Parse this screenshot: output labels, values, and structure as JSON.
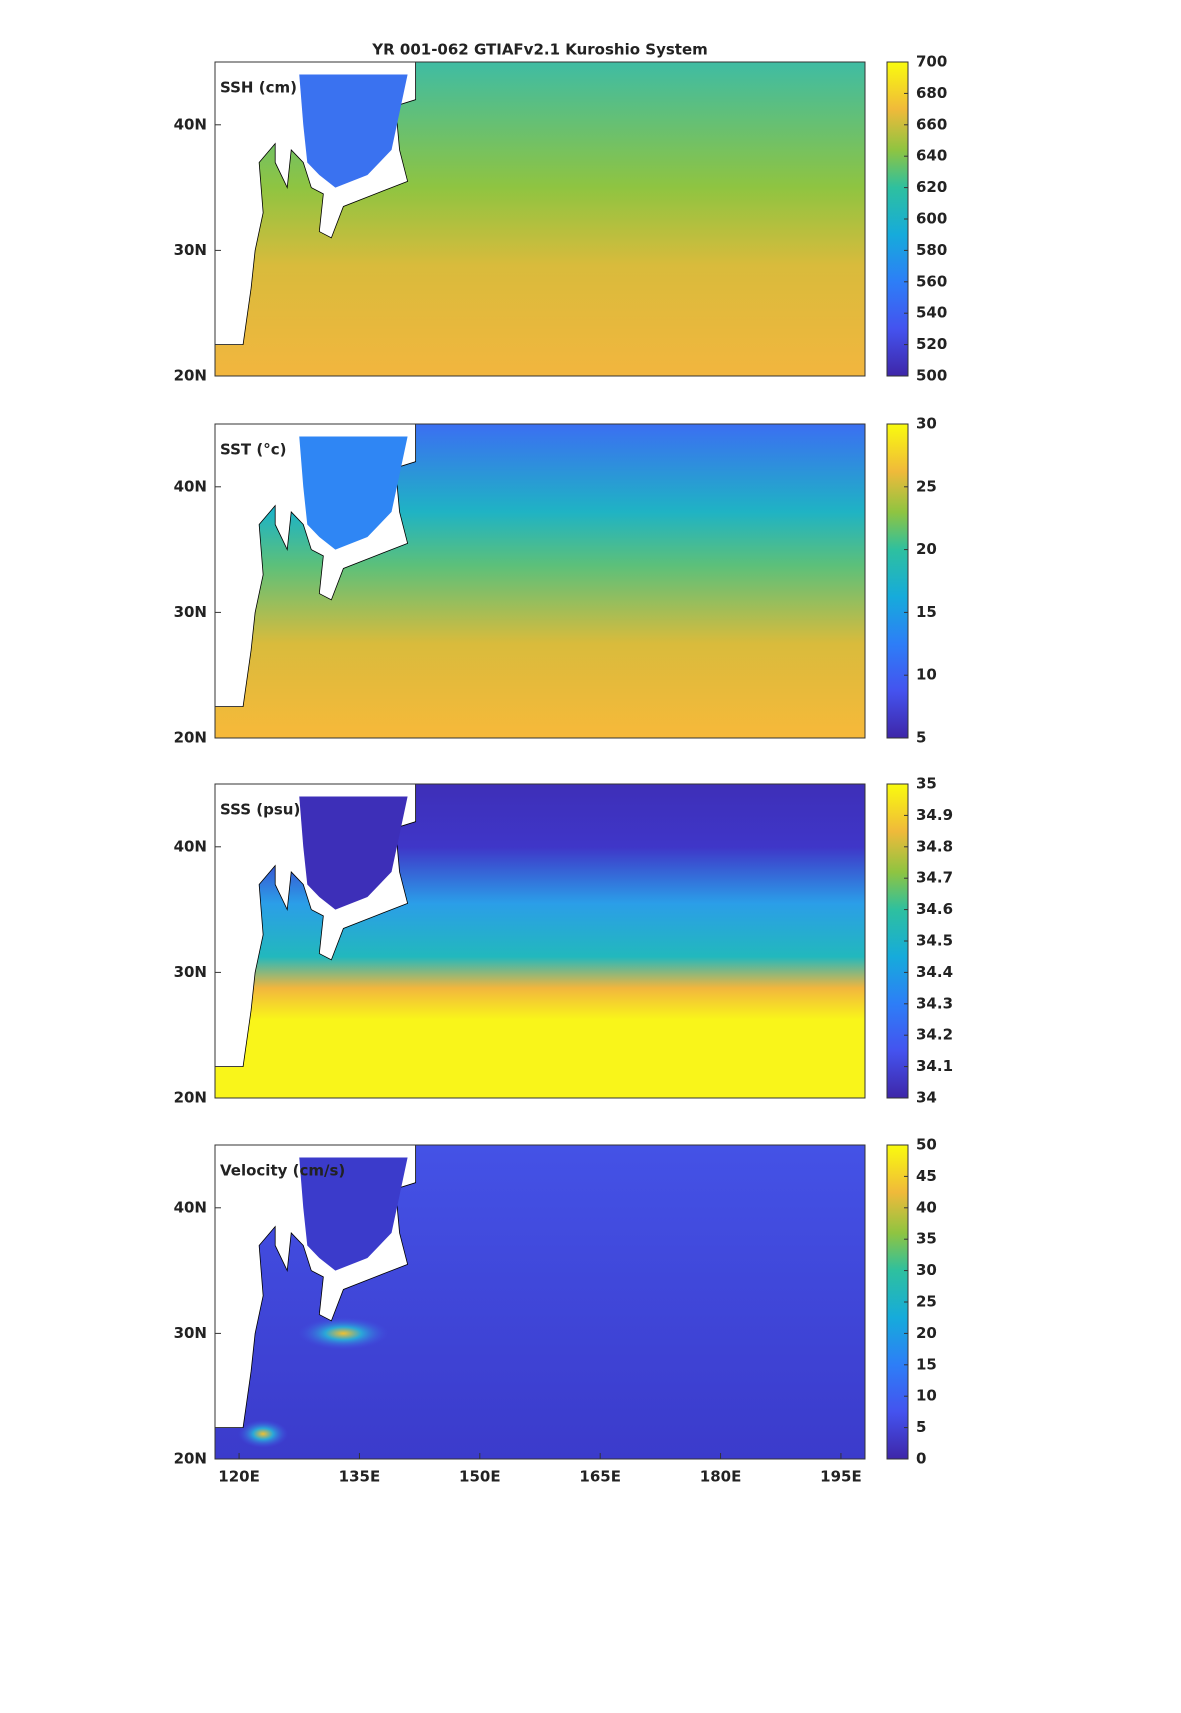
{
  "chart_data": [
    {
      "type": "heatmap",
      "title": "YR 001-062 GTIAFv2.1 Kuroshio System",
      "label": "SSH (cm)",
      "xlim": [
        117,
        198
      ],
      "ylim": [
        20,
        45
      ],
      "yticks": [
        {
          "value": 20,
          "label": "20N"
        },
        {
          "value": 30,
          "label": "30N"
        },
        {
          "value": 40,
          "label": "40N"
        }
      ],
      "clim": [
        500,
        700
      ],
      "cticks": [
        500,
        520,
        540,
        560,
        580,
        600,
        620,
        640,
        660,
        680,
        700
      ]
    },
    {
      "type": "heatmap",
      "label": "SST (°c)",
      "xlim": [
        117,
        198
      ],
      "ylim": [
        20,
        45
      ],
      "yticks": [
        {
          "value": 20,
          "label": "20N"
        },
        {
          "value": 30,
          "label": "30N"
        },
        {
          "value": 40,
          "label": "40N"
        }
      ],
      "clim": [
        5,
        30
      ],
      "cticks": [
        5,
        10,
        15,
        20,
        25,
        30
      ]
    },
    {
      "type": "heatmap",
      "label": "SSS (psu)",
      "xlim": [
        117,
        198
      ],
      "ylim": [
        20,
        45
      ],
      "yticks": [
        {
          "value": 20,
          "label": "20N"
        },
        {
          "value": 30,
          "label": "30N"
        },
        {
          "value": 40,
          "label": "40N"
        }
      ],
      "clim": [
        34,
        35
      ],
      "cticks": [
        34,
        34.1,
        34.2,
        34.3,
        34.4,
        34.5,
        34.6,
        34.7,
        34.8,
        34.9,
        35
      ]
    },
    {
      "type": "heatmap",
      "label": "Velocity (cm/s)",
      "xlim": [
        117,
        198
      ],
      "ylim": [
        20,
        45
      ],
      "yticks": [
        {
          "value": 20,
          "label": "20N"
        },
        {
          "value": 30,
          "label": "30N"
        },
        {
          "value": 40,
          "label": "40N"
        }
      ],
      "xticks": [
        {
          "value": 120,
          "label": "120E"
        },
        {
          "value": 135,
          "label": "135E"
        },
        {
          "value": 150,
          "label": "150E"
        },
        {
          "value": 165,
          "label": "165E"
        },
        {
          "value": 180,
          "label": "180E"
        },
        {
          "value": 195,
          "label": "195E"
        }
      ],
      "clim": [
        0,
        50
      ],
      "cticks": [
        0,
        5,
        10,
        15,
        20,
        25,
        30,
        35,
        40,
        45,
        50
      ]
    }
  ]
}
